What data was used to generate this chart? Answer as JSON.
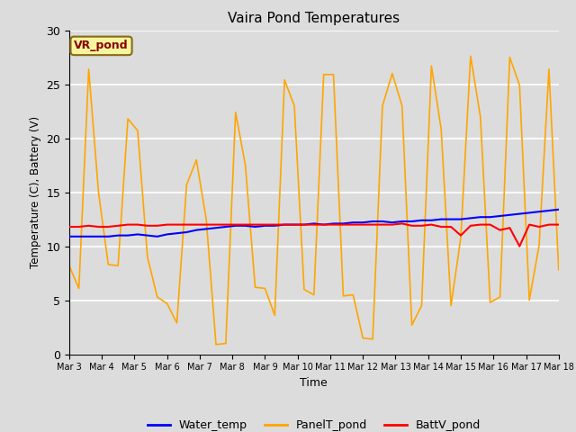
{
  "title": "Vaira Pond Temperatures",
  "xlabel": "Time",
  "ylabel": "Temperature (C), Battery (V)",
  "site_label": "VR_pond",
  "ylim": [
    0,
    30
  ],
  "background_color": "#dcdcdc",
  "plot_bg_color": "#dcdcdc",
  "water_temp_color": "blue",
  "panel_temp_color": "orange",
  "batt_color": "red",
  "legend_labels": [
    "Water_temp",
    "PanelT_pond",
    "BattV_pond"
  ],
  "tick_labels": [
    "Mar 3",
    "Mar 4",
    "Mar 5",
    "Mar 6",
    "Mar 7",
    "Mar 8",
    "Mar 9",
    "Mar 10",
    "Mar 11",
    "Mar 12",
    "Mar 13",
    "Mar 14",
    "Mar 15",
    "Mar 16",
    "Mar 17",
    "Mar 18"
  ],
  "water_temp": [
    10.9,
    10.9,
    10.9,
    10.9,
    10.9,
    11.0,
    11.0,
    11.1,
    11.0,
    10.9,
    11.1,
    11.2,
    11.3,
    11.5,
    11.6,
    11.7,
    11.8,
    11.9,
    11.9,
    11.8,
    11.9,
    11.9,
    12.0,
    12.0,
    12.0,
    12.1,
    12.0,
    12.1,
    12.1,
    12.2,
    12.2,
    12.3,
    12.3,
    12.2,
    12.3,
    12.3,
    12.4,
    12.4,
    12.5,
    12.5,
    12.5,
    12.6,
    12.7,
    12.7,
    12.8,
    12.9,
    13.0,
    13.1,
    13.2,
    13.3,
    13.4
  ],
  "panel_temp": [
    8.2,
    6.1,
    26.4,
    15.0,
    8.3,
    8.2,
    21.8,
    20.7,
    9.0,
    5.3,
    4.7,
    2.9,
    15.7,
    18.0,
    12.5,
    0.9,
    1.0,
    22.4,
    17.5,
    6.2,
    6.1,
    3.6,
    25.4,
    23.0,
    6.0,
    5.5,
    25.9,
    25.9,
    5.4,
    5.5,
    1.5,
    1.4,
    23.0,
    26.0,
    23.0,
    2.7,
    4.5,
    26.7,
    20.8,
    4.5,
    10.8,
    27.6,
    22.0,
    4.8,
    5.3,
    27.5,
    24.9,
    5.0,
    10.1,
    26.4,
    7.8
  ],
  "batt_v": [
    11.8,
    11.8,
    11.9,
    11.8,
    11.8,
    11.9,
    12.0,
    12.0,
    11.9,
    11.9,
    12.0,
    12.0,
    12.0,
    12.0,
    12.0,
    12.0,
    12.0,
    12.0,
    12.0,
    12.0,
    12.0,
    12.0,
    12.0,
    12.0,
    12.0,
    12.0,
    12.0,
    12.0,
    12.0,
    12.0,
    12.0,
    12.0,
    12.0,
    12.0,
    12.1,
    11.9,
    11.9,
    12.0,
    11.8,
    11.8,
    11.0,
    11.9,
    12.0,
    12.0,
    11.5,
    11.7,
    10.0,
    12.0,
    11.8,
    12.0,
    12.0
  ]
}
